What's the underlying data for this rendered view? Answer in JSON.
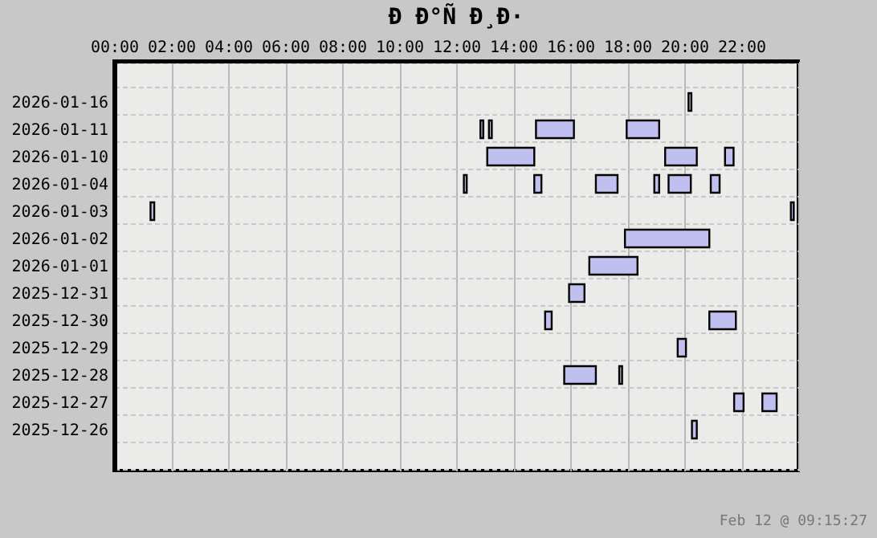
{
  "chart_data": {
    "type": "bar",
    "orientation": "horizontal",
    "title": "Ð Ð°Ñ Ð¸Ð·",
    "categories": [
      null,
      "2026-01-16",
      "2026-01-11",
      "2026-01-10",
      "2026-01-04",
      "2026-01-03",
      "2026-01-02",
      "2026-01-01",
      "2025-12-31",
      "2025-12-30",
      "2025-12-29",
      "2025-12-28",
      "2025-12-27",
      "2025-12-26",
      null
    ],
    "series": [
      {
        "color": "#c0c0f0",
        "base": [
          null,
          20.15,
          12.85,
          13.09,
          12.27,
          1.28,
          17.92,
          16.67,
          15.96,
          15.12,
          19.77,
          15.79,
          21.75,
          20.27,
          null
        ],
        "values": [
          null,
          0.1,
          0.1,
          1.65,
          0.1,
          0.13,
          2.96,
          1.69,
          0.54,
          0.23,
          0.29,
          1.11,
          0.33,
          0.17,
          null
        ]
      },
      {
        "color": "#c0c0f0",
        "base": [
          null,
          null,
          13.15,
          19.33,
          14.74,
          23.74,
          null,
          null,
          null,
          20.88,
          null,
          17.72,
          22.74,
          null,
          null
        ],
        "values": [
          null,
          null,
          0.1,
          1.11,
          0.25,
          0.1,
          null,
          null,
          null,
          0.93,
          null,
          0.1,
          0.5,
          null,
          null
        ]
      },
      {
        "color": "#c0c0f0",
        "base": [
          null,
          null,
          14.8,
          21.43,
          16.9,
          null,
          null,
          null,
          null,
          null,
          null,
          null,
          null,
          null,
          null
        ],
        "values": [
          null,
          null,
          1.33,
          0.3,
          0.76,
          null,
          null,
          null,
          null,
          null,
          null,
          null,
          null,
          null,
          null
        ]
      },
      {
        "color": "#c0c0f0",
        "base": [
          null,
          null,
          17.98,
          null,
          18.95,
          null,
          null,
          null,
          null,
          null,
          null,
          null,
          null,
          null,
          null
        ],
        "values": [
          null,
          null,
          1.14,
          null,
          0.17,
          null,
          null,
          null,
          null,
          null,
          null,
          null,
          null,
          null,
          null
        ]
      },
      {
        "color": "#c0c0f0",
        "base": [
          null,
          null,
          null,
          null,
          19.45,
          null,
          null,
          null,
          null,
          null,
          null,
          null,
          null,
          null,
          null
        ],
        "values": [
          null,
          null,
          null,
          null,
          0.78,
          null,
          null,
          null,
          null,
          null,
          null,
          null,
          null,
          null,
          null
        ]
      },
      {
        "color": "#c0c0f0",
        "base": [
          null,
          null,
          null,
          null,
          20.93,
          null,
          null,
          null,
          null,
          null,
          null,
          null,
          null,
          null,
          null
        ],
        "values": [
          null,
          null,
          null,
          null,
          0.31,
          null,
          null,
          null,
          null,
          null,
          null,
          null,
          null,
          null,
          null
        ]
      }
    ],
    "xlim": [
      0,
      24
    ],
    "xticks": [
      {
        "value": 0,
        "label": "00:00"
      },
      {
        "value": 2,
        "label": "02:00"
      },
      {
        "value": 4,
        "label": "04:00"
      },
      {
        "value": 6,
        "label": "06:00"
      },
      {
        "value": 8,
        "label": "08:00"
      },
      {
        "value": 10,
        "label": "10:00"
      },
      {
        "value": 12,
        "label": "12:00"
      },
      {
        "value": 14,
        "label": "14:00"
      },
      {
        "value": 16,
        "label": "16:00"
      },
      {
        "value": 18,
        "label": "18:00"
      },
      {
        "value": 20,
        "label": "20:00"
      },
      {
        "value": 22,
        "label": "22:00"
      },
      {
        "value": 24,
        "label": null
      }
    ],
    "grid": true,
    "annotations": [
      "Feb 12 @ 09:15:27"
    ]
  }
}
